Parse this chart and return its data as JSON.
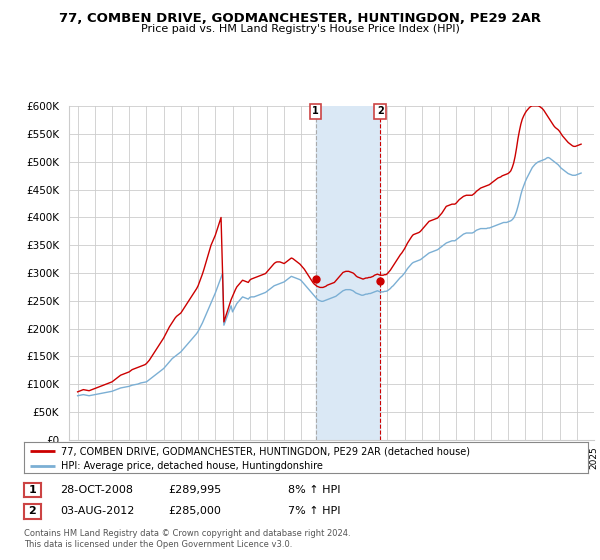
{
  "title": "77, COMBEN DRIVE, GODMANCHESTER, HUNTINGDON, PE29 2AR",
  "subtitle": "Price paid vs. HM Land Registry's House Price Index (HPI)",
  "legend_line1": "77, COMBEN DRIVE, GODMANCHESTER, HUNTINGDON, PE29 2AR (detached house)",
  "legend_line2": "HPI: Average price, detached house, Huntingdonshire",
  "annotation1_date": "28-OCT-2008",
  "annotation1_price": "£289,995",
  "annotation1_hpi": "8% ↑ HPI",
  "annotation1_year": 2008.83,
  "annotation1_value": 289995,
  "annotation2_date": "03-AUG-2012",
  "annotation2_price": "£285,000",
  "annotation2_hpi": "7% ↑ HPI",
  "annotation2_year": 2012.58,
  "annotation2_value": 285000,
  "hpi_color": "#7bafd4",
  "price_color": "#cc0000",
  "ann1_vline_color": "#aaaaaa",
  "ann2_vline_color": "#cc0000",
  "shaded_color": "#dae8f5",
  "background_color": "#ffffff",
  "grid_color": "#cccccc",
  "ylim": [
    0,
    600000
  ],
  "yticks": [
    0,
    50000,
    100000,
    150000,
    200000,
    250000,
    300000,
    350000,
    400000,
    450000,
    500000,
    550000,
    600000
  ],
  "footer": "Contains HM Land Registry data © Crown copyright and database right 2024.\nThis data is licensed under the Open Government Licence v3.0.",
  "hpi_data_years": [
    1995.0,
    1995.083,
    1995.167,
    1995.25,
    1995.333,
    1995.417,
    1995.5,
    1995.583,
    1995.667,
    1995.75,
    1995.833,
    1995.917,
    1996.0,
    1996.083,
    1996.167,
    1996.25,
    1996.333,
    1996.417,
    1996.5,
    1996.583,
    1996.667,
    1996.75,
    1996.833,
    1996.917,
    1997.0,
    1997.083,
    1997.167,
    1997.25,
    1997.333,
    1997.417,
    1997.5,
    1997.583,
    1997.667,
    1997.75,
    1997.833,
    1997.917,
    1998.0,
    1998.083,
    1998.167,
    1998.25,
    1998.333,
    1998.417,
    1998.5,
    1998.583,
    1998.667,
    1998.75,
    1998.833,
    1998.917,
    1999.0,
    1999.083,
    1999.167,
    1999.25,
    1999.333,
    1999.417,
    1999.5,
    1999.583,
    1999.667,
    1999.75,
    1999.833,
    1999.917,
    2000.0,
    2000.083,
    2000.167,
    2000.25,
    2000.333,
    2000.417,
    2000.5,
    2000.583,
    2000.667,
    2000.75,
    2000.833,
    2000.917,
    2001.0,
    2001.083,
    2001.167,
    2001.25,
    2001.333,
    2001.417,
    2001.5,
    2001.583,
    2001.667,
    2001.75,
    2001.833,
    2001.917,
    2002.0,
    2002.083,
    2002.167,
    2002.25,
    2002.333,
    2002.417,
    2002.5,
    2002.583,
    2002.667,
    2002.75,
    2002.833,
    2002.917,
    2003.0,
    2003.083,
    2003.167,
    2003.25,
    2003.333,
    2003.417,
    2003.5,
    2003.583,
    2003.667,
    2003.75,
    2003.833,
    2003.917,
    2004.0,
    2004.083,
    2004.167,
    2004.25,
    2004.333,
    2004.417,
    2004.5,
    2004.583,
    2004.667,
    2004.75,
    2004.833,
    2004.917,
    2005.0,
    2005.083,
    2005.167,
    2005.25,
    2005.333,
    2005.417,
    2005.5,
    2005.583,
    2005.667,
    2005.75,
    2005.833,
    2005.917,
    2006.0,
    2006.083,
    2006.167,
    2006.25,
    2006.333,
    2006.417,
    2006.5,
    2006.583,
    2006.667,
    2006.75,
    2006.833,
    2006.917,
    2007.0,
    2007.083,
    2007.167,
    2007.25,
    2007.333,
    2007.417,
    2007.5,
    2007.583,
    2007.667,
    2007.75,
    2007.833,
    2007.917,
    2008.0,
    2008.083,
    2008.167,
    2008.25,
    2008.333,
    2008.417,
    2008.5,
    2008.583,
    2008.667,
    2008.75,
    2008.833,
    2008.917,
    2009.0,
    2009.083,
    2009.167,
    2009.25,
    2009.333,
    2009.417,
    2009.5,
    2009.583,
    2009.667,
    2009.75,
    2009.833,
    2009.917,
    2010.0,
    2010.083,
    2010.167,
    2010.25,
    2010.333,
    2010.417,
    2010.5,
    2010.583,
    2010.667,
    2010.75,
    2010.833,
    2010.917,
    2011.0,
    2011.083,
    2011.167,
    2011.25,
    2011.333,
    2011.417,
    2011.5,
    2011.583,
    2011.667,
    2011.75,
    2011.833,
    2011.917,
    2012.0,
    2012.083,
    2012.167,
    2012.25,
    2012.333,
    2012.417,
    2012.5,
    2012.583,
    2012.667,
    2012.75,
    2012.833,
    2012.917,
    2013.0,
    2013.083,
    2013.167,
    2013.25,
    2013.333,
    2013.417,
    2013.5,
    2013.583,
    2013.667,
    2013.75,
    2013.833,
    2013.917,
    2014.0,
    2014.083,
    2014.167,
    2014.25,
    2014.333,
    2014.417,
    2014.5,
    2014.583,
    2014.667,
    2014.75,
    2014.833,
    2014.917,
    2015.0,
    2015.083,
    2015.167,
    2015.25,
    2015.333,
    2015.417,
    2015.5,
    2015.583,
    2015.667,
    2015.75,
    2015.833,
    2015.917,
    2016.0,
    2016.083,
    2016.167,
    2016.25,
    2016.333,
    2016.417,
    2016.5,
    2016.583,
    2016.667,
    2016.75,
    2016.833,
    2016.917,
    2017.0,
    2017.083,
    2017.167,
    2017.25,
    2017.333,
    2017.417,
    2017.5,
    2017.583,
    2017.667,
    2017.75,
    2017.833,
    2017.917,
    2018.0,
    2018.083,
    2018.167,
    2018.25,
    2018.333,
    2018.417,
    2018.5,
    2018.583,
    2018.667,
    2018.75,
    2018.833,
    2018.917,
    2019.0,
    2019.083,
    2019.167,
    2019.25,
    2019.333,
    2019.417,
    2019.5,
    2019.583,
    2019.667,
    2019.75,
    2019.833,
    2019.917,
    2020.0,
    2020.083,
    2020.167,
    2020.25,
    2020.333,
    2020.417,
    2020.5,
    2020.583,
    2020.667,
    2020.75,
    2020.833,
    2020.917,
    2021.0,
    2021.083,
    2021.167,
    2021.25,
    2021.333,
    2021.417,
    2021.5,
    2021.583,
    2021.667,
    2021.75,
    2021.833,
    2021.917,
    2022.0,
    2022.083,
    2022.167,
    2022.25,
    2022.333,
    2022.417,
    2022.5,
    2022.583,
    2022.667,
    2022.75,
    2022.833,
    2022.917,
    2023.0,
    2023.083,
    2023.167,
    2023.25,
    2023.333,
    2023.417,
    2023.5,
    2023.583,
    2023.667,
    2023.75,
    2023.833,
    2023.917,
    2024.0,
    2024.083,
    2024.167,
    2024.25
  ],
  "hpi_data_values": [
    79000,
    79500,
    80000,
    80500,
    81000,
    80500,
    80000,
    79500,
    79000,
    79500,
    80000,
    80500,
    81000,
    81500,
    82000,
    82500,
    83000,
    83500,
    84000,
    84500,
    85000,
    85500,
    86000,
    86500,
    87000,
    88000,
    89000,
    90000,
    91000,
    92000,
    93000,
    93500,
    94000,
    94500,
    95000,
    95500,
    96000,
    97000,
    98000,
    98500,
    99000,
    99500,
    100000,
    101000,
    102000,
    102500,
    103000,
    103500,
    104000,
    106000,
    108000,
    110000,
    112000,
    114000,
    116000,
    118000,
    120000,
    122000,
    124000,
    126000,
    128000,
    131000,
    134000,
    137000,
    140000,
    143000,
    146000,
    148000,
    150000,
    152000,
    154000,
    156000,
    158000,
    161000,
    164000,
    167000,
    170000,
    173000,
    176000,
    179000,
    182000,
    185000,
    188000,
    191000,
    195000,
    200000,
    205000,
    210000,
    216000,
    222000,
    228000,
    234000,
    240000,
    246000,
    252000,
    258000,
    264000,
    271000,
    278000,
    285000,
    292000,
    299000,
    206000,
    213000,
    220000,
    227000,
    234000,
    241000,
    230000,
    235000,
    240000,
    245000,
    248000,
    251000,
    254000,
    257000,
    256000,
    255000,
    254000,
    253000,
    256000,
    257000,
    257000,
    257000,
    258000,
    259000,
    260000,
    261000,
    262000,
    263000,
    264000,
    265000,
    267000,
    269000,
    271000,
    273000,
    275000,
    277000,
    278000,
    279000,
    280000,
    281000,
    282000,
    283000,
    284000,
    286000,
    288000,
    290000,
    292000,
    294000,
    293000,
    292000,
    291000,
    290000,
    289000,
    288000,
    286000,
    283000,
    280000,
    277000,
    274000,
    271000,
    268000,
    265000,
    262000,
    259000,
    256000,
    253000,
    251000,
    250000,
    249000,
    249000,
    250000,
    251000,
    252000,
    253000,
    254000,
    255000,
    256000,
    257000,
    258000,
    260000,
    262000,
    264000,
    266000,
    268000,
    269000,
    270000,
    270000,
    270000,
    270000,
    269000,
    268000,
    266000,
    264000,
    263000,
    262000,
    261000,
    260000,
    260000,
    261000,
    262000,
    262000,
    263000,
    263000,
    264000,
    265000,
    266000,
    267000,
    268000,
    267000,
    266000,
    266000,
    266000,
    267000,
    267000,
    268000,
    270000,
    272000,
    275000,
    277000,
    280000,
    283000,
    286000,
    289000,
    292000,
    294000,
    297000,
    300000,
    304000,
    308000,
    311000,
    314000,
    317000,
    319000,
    320000,
    321000,
    322000,
    323000,
    324000,
    326000,
    328000,
    330000,
    332000,
    334000,
    336000,
    337000,
    338000,
    339000,
    340000,
    341000,
    342000,
    344000,
    346000,
    348000,
    350000,
    352000,
    354000,
    355000,
    356000,
    357000,
    358000,
    358000,
    358000,
    360000,
    362000,
    364000,
    366000,
    368000,
    370000,
    371000,
    372000,
    372000,
    372000,
    372000,
    372000,
    373000,
    375000,
    377000,
    378000,
    379000,
    380000,
    380000,
    380000,
    380000,
    380000,
    381000,
    381000,
    382000,
    383000,
    384000,
    385000,
    386000,
    387000,
    388000,
    389000,
    390000,
    391000,
    391000,
    391000,
    392000,
    393000,
    394000,
    396000,
    399000,
    404000,
    411000,
    420000,
    430000,
    441000,
    450000,
    457000,
    464000,
    470000,
    475000,
    480000,
    485000,
    490000,
    493000,
    496000,
    498000,
    500000,
    501000,
    502000,
    503000,
    504000,
    505000,
    507000,
    508000,
    507000,
    505000,
    503000,
    501000,
    499000,
    497000,
    495000,
    492000,
    489000,
    487000,
    485000,
    483000,
    481000,
    479000,
    478000,
    477000,
    476000,
    476000,
    476000,
    477000,
    478000,
    479000,
    480000
  ],
  "price_data_years": [
    1995.0,
    1995.083,
    1995.167,
    1995.25,
    1995.333,
    1995.417,
    1995.5,
    1995.583,
    1995.667,
    1995.75,
    1995.833,
    1995.917,
    1996.0,
    1996.083,
    1996.167,
    1996.25,
    1996.333,
    1996.417,
    1996.5,
    1996.583,
    1996.667,
    1996.75,
    1996.833,
    1996.917,
    1997.0,
    1997.083,
    1997.167,
    1997.25,
    1997.333,
    1997.417,
    1997.5,
    1997.583,
    1997.667,
    1997.75,
    1997.833,
    1997.917,
    1998.0,
    1998.083,
    1998.167,
    1998.25,
    1998.333,
    1998.417,
    1998.5,
    1998.583,
    1998.667,
    1998.75,
    1998.833,
    1998.917,
    1999.0,
    1999.083,
    1999.167,
    1999.25,
    1999.333,
    1999.417,
    1999.5,
    1999.583,
    1999.667,
    1999.75,
    1999.833,
    1999.917,
    2000.0,
    2000.083,
    2000.167,
    2000.25,
    2000.333,
    2000.417,
    2000.5,
    2000.583,
    2000.667,
    2000.75,
    2000.833,
    2000.917,
    2001.0,
    2001.083,
    2001.167,
    2001.25,
    2001.333,
    2001.417,
    2001.5,
    2001.583,
    2001.667,
    2001.75,
    2001.833,
    2001.917,
    2002.0,
    2002.083,
    2002.167,
    2002.25,
    2002.333,
    2002.417,
    2002.5,
    2002.583,
    2002.667,
    2002.75,
    2002.833,
    2002.917,
    2003.0,
    2003.083,
    2003.167,
    2003.25,
    2003.333,
    2003.417,
    2003.5,
    2003.583,
    2003.667,
    2003.75,
    2003.833,
    2003.917,
    2004.0,
    2004.083,
    2004.167,
    2004.25,
    2004.333,
    2004.417,
    2004.5,
    2004.583,
    2004.667,
    2004.75,
    2004.833,
    2004.917,
    2005.0,
    2005.083,
    2005.167,
    2005.25,
    2005.333,
    2005.417,
    2005.5,
    2005.583,
    2005.667,
    2005.75,
    2005.833,
    2005.917,
    2006.0,
    2006.083,
    2006.167,
    2006.25,
    2006.333,
    2006.417,
    2006.5,
    2006.583,
    2006.667,
    2006.75,
    2006.833,
    2006.917,
    2007.0,
    2007.083,
    2007.167,
    2007.25,
    2007.333,
    2007.417,
    2007.5,
    2007.583,
    2007.667,
    2007.75,
    2007.833,
    2007.917,
    2008.0,
    2008.083,
    2008.167,
    2008.25,
    2008.333,
    2008.417,
    2008.5,
    2008.583,
    2008.667,
    2008.75,
    2008.833,
    2008.917,
    2009.0,
    2009.083,
    2009.167,
    2009.25,
    2009.333,
    2009.417,
    2009.5,
    2009.583,
    2009.667,
    2009.75,
    2009.833,
    2009.917,
    2010.0,
    2010.083,
    2010.167,
    2010.25,
    2010.333,
    2010.417,
    2010.5,
    2010.583,
    2010.667,
    2010.75,
    2010.833,
    2010.917,
    2011.0,
    2011.083,
    2011.167,
    2011.25,
    2011.333,
    2011.417,
    2011.5,
    2011.583,
    2011.667,
    2011.75,
    2011.833,
    2011.917,
    2012.0,
    2012.083,
    2012.167,
    2012.25,
    2012.333,
    2012.417,
    2012.5,
    2012.583,
    2012.667,
    2012.75,
    2012.833,
    2012.917,
    2013.0,
    2013.083,
    2013.167,
    2013.25,
    2013.333,
    2013.417,
    2013.5,
    2013.583,
    2013.667,
    2013.75,
    2013.833,
    2013.917,
    2014.0,
    2014.083,
    2014.167,
    2014.25,
    2014.333,
    2014.417,
    2014.5,
    2014.583,
    2014.667,
    2014.75,
    2014.833,
    2014.917,
    2015.0,
    2015.083,
    2015.167,
    2015.25,
    2015.333,
    2015.417,
    2015.5,
    2015.583,
    2015.667,
    2015.75,
    2015.833,
    2015.917,
    2016.0,
    2016.083,
    2016.167,
    2016.25,
    2016.333,
    2016.417,
    2016.5,
    2016.583,
    2016.667,
    2016.75,
    2016.833,
    2016.917,
    2017.0,
    2017.083,
    2017.167,
    2017.25,
    2017.333,
    2017.417,
    2017.5,
    2017.583,
    2017.667,
    2017.75,
    2017.833,
    2017.917,
    2018.0,
    2018.083,
    2018.167,
    2018.25,
    2018.333,
    2018.417,
    2018.5,
    2018.583,
    2018.667,
    2018.75,
    2018.833,
    2018.917,
    2019.0,
    2019.083,
    2019.167,
    2019.25,
    2019.333,
    2019.417,
    2019.5,
    2019.583,
    2019.667,
    2019.75,
    2019.833,
    2019.917,
    2020.0,
    2020.083,
    2020.167,
    2020.25,
    2020.333,
    2020.417,
    2020.5,
    2020.583,
    2020.667,
    2020.75,
    2020.833,
    2020.917,
    2021.0,
    2021.083,
    2021.167,
    2021.25,
    2021.333,
    2021.417,
    2021.5,
    2021.583,
    2021.667,
    2021.75,
    2021.833,
    2021.917,
    2022.0,
    2022.083,
    2022.167,
    2022.25,
    2022.333,
    2022.417,
    2022.5,
    2022.583,
    2022.667,
    2022.75,
    2022.833,
    2022.917,
    2023.0,
    2023.083,
    2023.167,
    2023.25,
    2023.333,
    2023.417,
    2023.5,
    2023.583,
    2023.667,
    2023.75,
    2023.833,
    2023.917,
    2024.0,
    2024.083,
    2024.167,
    2024.25
  ],
  "price_data_values": [
    86000,
    87000,
    88000,
    89000,
    90000,
    89500,
    89000,
    88500,
    88000,
    89000,
    90000,
    91000,
    92000,
    93000,
    94000,
    95000,
    96000,
    97000,
    98000,
    99000,
    100000,
    101000,
    102000,
    103000,
    104000,
    106000,
    108000,
    110000,
    112000,
    114000,
    116000,
    117000,
    118000,
    119000,
    120000,
    121000,
    122000,
    124000,
    126000,
    127000,
    128000,
    129000,
    130000,
    131000,
    132000,
    133000,
    134000,
    135000,
    137000,
    140000,
    143000,
    147000,
    151000,
    155000,
    159000,
    163000,
    167000,
    171000,
    175000,
    179000,
    183000,
    188000,
    193000,
    198000,
    203000,
    207000,
    211000,
    215000,
    219000,
    222000,
    224000,
    226000,
    228000,
    232000,
    236000,
    240000,
    244000,
    248000,
    252000,
    256000,
    260000,
    264000,
    268000,
    272000,
    277000,
    284000,
    291000,
    298000,
    306000,
    315000,
    324000,
    333000,
    342000,
    350000,
    356000,
    362000,
    368000,
    376000,
    384000,
    392000,
    400000,
    305000,
    212000,
    220000,
    228000,
    236000,
    244000,
    252000,
    258000,
    264000,
    270000,
    275000,
    278000,
    281000,
    284000,
    287000,
    286000,
    285000,
    284000,
    283000,
    287000,
    289000,
    290000,
    291000,
    292000,
    293000,
    294000,
    295000,
    296000,
    297000,
    298000,
    299000,
    302000,
    305000,
    308000,
    311000,
    314000,
    317000,
    319000,
    320000,
    320000,
    320000,
    319000,
    318000,
    317000,
    319000,
    321000,
    323000,
    325000,
    327000,
    326000,
    324000,
    322000,
    320000,
    318000,
    316000,
    313000,
    310000,
    307000,
    303000,
    299000,
    295000,
    291000,
    287000,
    283000,
    280000,
    278000,
    276000,
    275000,
    274000,
    274000,
    274000,
    275000,
    276000,
    278000,
    279000,
    280000,
    281000,
    282000,
    283000,
    286000,
    289000,
    292000,
    295000,
    298000,
    301000,
    302000,
    303000,
    303000,
    303000,
    302000,
    301000,
    300000,
    298000,
    295000,
    293000,
    292000,
    291000,
    290000,
    289000,
    290000,
    291000,
    291000,
    292000,
    292000,
    293000,
    294000,
    296000,
    297000,
    298000,
    297000,
    296000,
    296000,
    296000,
    297000,
    297000,
    299000,
    302000,
    305000,
    309000,
    313000,
    317000,
    321000,
    325000,
    329000,
    333000,
    336000,
    340000,
    344000,
    349000,
    354000,
    358000,
    362000,
    366000,
    369000,
    370000,
    371000,
    372000,
    373000,
    375000,
    378000,
    381000,
    384000,
    387000,
    390000,
    393000,
    394000,
    395000,
    396000,
    397000,
    398000,
    399000,
    402000,
    405000,
    408000,
    412000,
    416000,
    420000,
    421000,
    422000,
    423000,
    424000,
    424000,
    424000,
    426000,
    429000,
    432000,
    434000,
    436000,
    438000,
    439000,
    440000,
    440000,
    440000,
    440000,
    440000,
    442000,
    444000,
    447000,
    449000,
    451000,
    453000,
    454000,
    455000,
    456000,
    457000,
    458000,
    459000,
    461000,
    463000,
    465000,
    467000,
    469000,
    471000,
    472000,
    473000,
    475000,
    476000,
    477000,
    478000,
    479000,
    481000,
    484000,
    490000,
    498000,
    510000,
    525000,
    542000,
    556000,
    568000,
    577000,
    583000,
    588000,
    592000,
    595000,
    598000,
    600000,
    601000,
    601000,
    601000,
    601000,
    601000,
    600000,
    598000,
    596000,
    593000,
    589000,
    585000,
    581000,
    577000,
    573000,
    569000,
    565000,
    562000,
    560000,
    558000,
    555000,
    551000,
    547000,
    544000,
    541000,
    538000,
    535000,
    533000,
    531000,
    529000,
    528000,
    528000,
    529000,
    530000,
    531000,
    532000
  ]
}
